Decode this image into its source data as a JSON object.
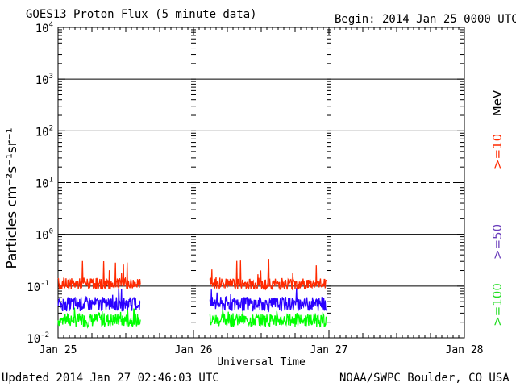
{
  "chart_data": {
    "type": "line",
    "title": "GOES13 Proton Flux (5 minute data)",
    "begin_label": "Begin: 2014 Jan 25 0000 UTC",
    "ylabel": "Particles cm⁻²s⁻¹sr⁻¹",
    "xlabel": "Universal Time",
    "y_scale": "log",
    "ylim": [
      0.01,
      10000
    ],
    "y_ticks": [
      {
        "base": "10",
        "exp": "4"
      },
      {
        "base": "10",
        "exp": "3"
      },
      {
        "base": "10",
        "exp": "2"
      },
      {
        "base": "10",
        "exp": "1"
      },
      {
        "base": "10",
        "exp": "0"
      },
      {
        "base": "10",
        "exp": "-1"
      },
      {
        "base": "10",
        "exp": "-2"
      }
    ],
    "x_range_days": [
      0,
      3
    ],
    "x_ticks": [
      "Jan 25",
      "Jan 26",
      "Jan 27",
      "Jan 28"
    ],
    "threshold_flux": 10,
    "data_gaps_days": [
      [
        0.61,
        1.12
      ],
      [
        1.98,
        3.0
      ]
    ],
    "series": [
      {
        "name": ">=10 MeV",
        "color": "#ff2a00",
        "typical": 0.11,
        "range": [
          0.08,
          0.35
        ]
      },
      {
        "name": ">=50 MeV",
        "color": "#2a00ff",
        "typical": 0.045,
        "range": [
          0.03,
          0.1
        ]
      },
      {
        "name": ">=100 MeV",
        "color": "#00ff00",
        "typical": 0.022,
        "range": [
          0.015,
          0.04
        ]
      }
    ],
    "legend": [
      {
        "label": ">=10",
        "color": "#ff2a00"
      },
      {
        "label": ">=50",
        "color": "#6a3dbb"
      },
      {
        "label": ">=100",
        "color": "#22dd22"
      },
      {
        "label": "MeV",
        "color": "#000000"
      }
    ]
  },
  "footer": {
    "updated": "Updated 2014 Jan 27 02:46:03 UTC",
    "credit": "NOAA/SWPC Boulder, CO USA"
  }
}
